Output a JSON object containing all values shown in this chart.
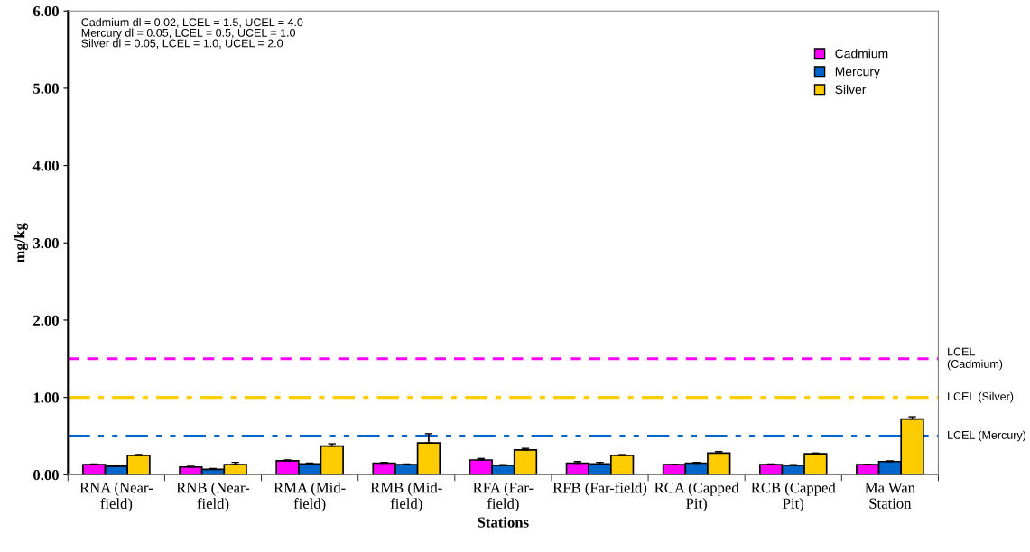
{
  "chart_data": {
    "type": "bar",
    "xlabel": "Stations",
    "ylabel": "mg/kg",
    "categories": [
      "RNA (Near-\nfield)",
      "RNB (Near-\nfield)",
      "RMA (Mid-\nfield)",
      "RMB (Mid-\nfield)",
      "RFA (Far-\nfield)",
      "RFB (Far-field)",
      "RCA (Capped\nPit)",
      "RCB (Capped\nPit)",
      "Ma Wan\nStation"
    ],
    "series": [
      {
        "name": "Cadmium",
        "color": "#ff00ff",
        "values": [
          0.13,
          0.1,
          0.18,
          0.15,
          0.19,
          0.15,
          0.13,
          0.13,
          0.13
        ],
        "errors": [
          0.01,
          0.01,
          0.01,
          0.01,
          0.02,
          0.02,
          null,
          0.01,
          null
        ]
      },
      {
        "name": "Mercury",
        "color": "#0066cc",
        "values": [
          0.11,
          0.07,
          0.14,
          0.13,
          0.12,
          0.14,
          0.15,
          0.12,
          0.17
        ],
        "errors": [
          0.01,
          0.01,
          0.01,
          0.01,
          0.01,
          0.02,
          0.01,
          0.01,
          0.01
        ]
      },
      {
        "name": "Silver",
        "color": "#ffcc00",
        "values": [
          0.25,
          0.13,
          0.37,
          0.41,
          0.32,
          0.25,
          0.28,
          0.27,
          0.72
        ],
        "errors": [
          0.01,
          0.03,
          0.03,
          0.12,
          0.02,
          0.01,
          0.02,
          0.01,
          0.03
        ]
      }
    ],
    "ylim": [
      0,
      6
    ],
    "yticks": [
      {
        "value": 0,
        "label": "0.00"
      },
      {
        "value": 1,
        "label": "1.00"
      },
      {
        "value": 2,
        "label": "2.00"
      },
      {
        "value": 3,
        "label": "3.00"
      },
      {
        "value": 4,
        "label": "4.00"
      },
      {
        "value": 5,
        "label": "5.00"
      },
      {
        "value": 6,
        "label": "6.00"
      }
    ],
    "ref_lines": [
      {
        "axis": "y",
        "value": 1.5,
        "label": "LCEL\n(Cadmium)",
        "color": "#ff00ff",
        "line_style": "dashed"
      },
      {
        "axis": "y",
        "value": 1.0,
        "label": "LCEL (Silver)",
        "color": "#ffcc00",
        "line_style": "dashdot"
      },
      {
        "axis": "y",
        "value": 0.5,
        "label": "LCEL (Mercury)",
        "color": "#0066cc",
        "line_style": "dashdotdot"
      }
    ],
    "annotations": [
      "Cadmium dl = 0.02, LCEL = 1.5, UCEL = 4.0\nMercury dl = 0.05, LCEL = 0.5, UCEL = 1.0\nSilver dl = 0.05, LCEL = 1.0, UCEL = 2.0"
    ],
    "legend": "top right",
    "grid": false
  }
}
